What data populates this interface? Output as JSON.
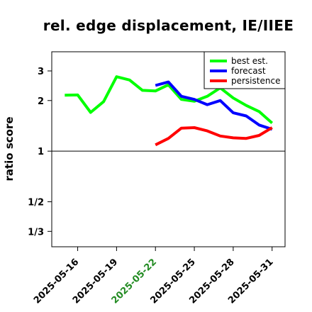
{
  "chart_data": {
    "type": "line",
    "title": "rel. edge displacement, IE/IIEE",
    "ylabel": "ratio score",
    "xlabel": "",
    "y_scale": "log",
    "ylim": [
      0.27,
      3.9
    ],
    "xlim": [
      "2025-05-14",
      "2025-06-01"
    ],
    "yticks": [
      {
        "value": 3,
        "label": "3"
      },
      {
        "value": 2,
        "label": "2"
      },
      {
        "value": 1,
        "label": "1"
      },
      {
        "value": 0.5,
        "label": "1/2"
      },
      {
        "value": 0.3333,
        "label": "1/3"
      }
    ],
    "reference_line": 1,
    "xticks": [
      {
        "date": "2025-05-16",
        "label": "2025-05-16",
        "color": "#000000"
      },
      {
        "date": "2025-05-19",
        "label": "2025-05-19",
        "color": "#000000"
      },
      {
        "date": "2025-05-22",
        "label": "2025-05-22",
        "color": "#228b22"
      },
      {
        "date": "2025-05-25",
        "label": "2025-05-25",
        "color": "#000000"
      },
      {
        "date": "2025-05-28",
        "label": "2025-05-28",
        "color": "#000000"
      },
      {
        "date": "2025-05-31",
        "label": "2025-05-31",
        "color": "#000000"
      }
    ],
    "legend_position": "top-right",
    "grid": false,
    "series": [
      {
        "name": "best est.",
        "color": "#00ff00",
        "points": [
          [
            "2025-05-15",
            2.15
          ],
          [
            "2025-05-16",
            2.16
          ],
          [
            "2025-05-17",
            1.7
          ],
          [
            "2025-05-18",
            1.97
          ],
          [
            "2025-05-19",
            2.77
          ],
          [
            "2025-05-20",
            2.65
          ],
          [
            "2025-05-21",
            2.3
          ],
          [
            "2025-05-22",
            2.28
          ],
          [
            "2025-05-23",
            2.48
          ],
          [
            "2025-05-24",
            2.03
          ],
          [
            "2025-05-25",
            1.98
          ],
          [
            "2025-05-26",
            2.12
          ],
          [
            "2025-05-27",
            2.38
          ],
          [
            "2025-05-28",
            2.07
          ],
          [
            "2025-05-29",
            1.87
          ],
          [
            "2025-05-30",
            1.72
          ],
          [
            "2025-05-31",
            1.47
          ]
        ]
      },
      {
        "name": "forecast",
        "color": "#0000ff",
        "points": [
          [
            "2025-05-22",
            2.46
          ],
          [
            "2025-05-23",
            2.58
          ],
          [
            "2025-05-24",
            2.12
          ],
          [
            "2025-05-25",
            2.03
          ],
          [
            "2025-05-26",
            1.89
          ],
          [
            "2025-05-27",
            2.0
          ],
          [
            "2025-05-28",
            1.69
          ],
          [
            "2025-05-29",
            1.62
          ],
          [
            "2025-05-30",
            1.43
          ],
          [
            "2025-05-31",
            1.35
          ]
        ]
      },
      {
        "name": "persistence",
        "color": "#ff0000",
        "points": [
          [
            "2025-05-22",
            1.09
          ],
          [
            "2025-05-23",
            1.19
          ],
          [
            "2025-05-24",
            1.37
          ],
          [
            "2025-05-25",
            1.38
          ],
          [
            "2025-05-26",
            1.32
          ],
          [
            "2025-05-27",
            1.23
          ],
          [
            "2025-05-28",
            1.2
          ],
          [
            "2025-05-29",
            1.19
          ],
          [
            "2025-05-30",
            1.24
          ],
          [
            "2025-05-31",
            1.38
          ]
        ]
      }
    ]
  }
}
